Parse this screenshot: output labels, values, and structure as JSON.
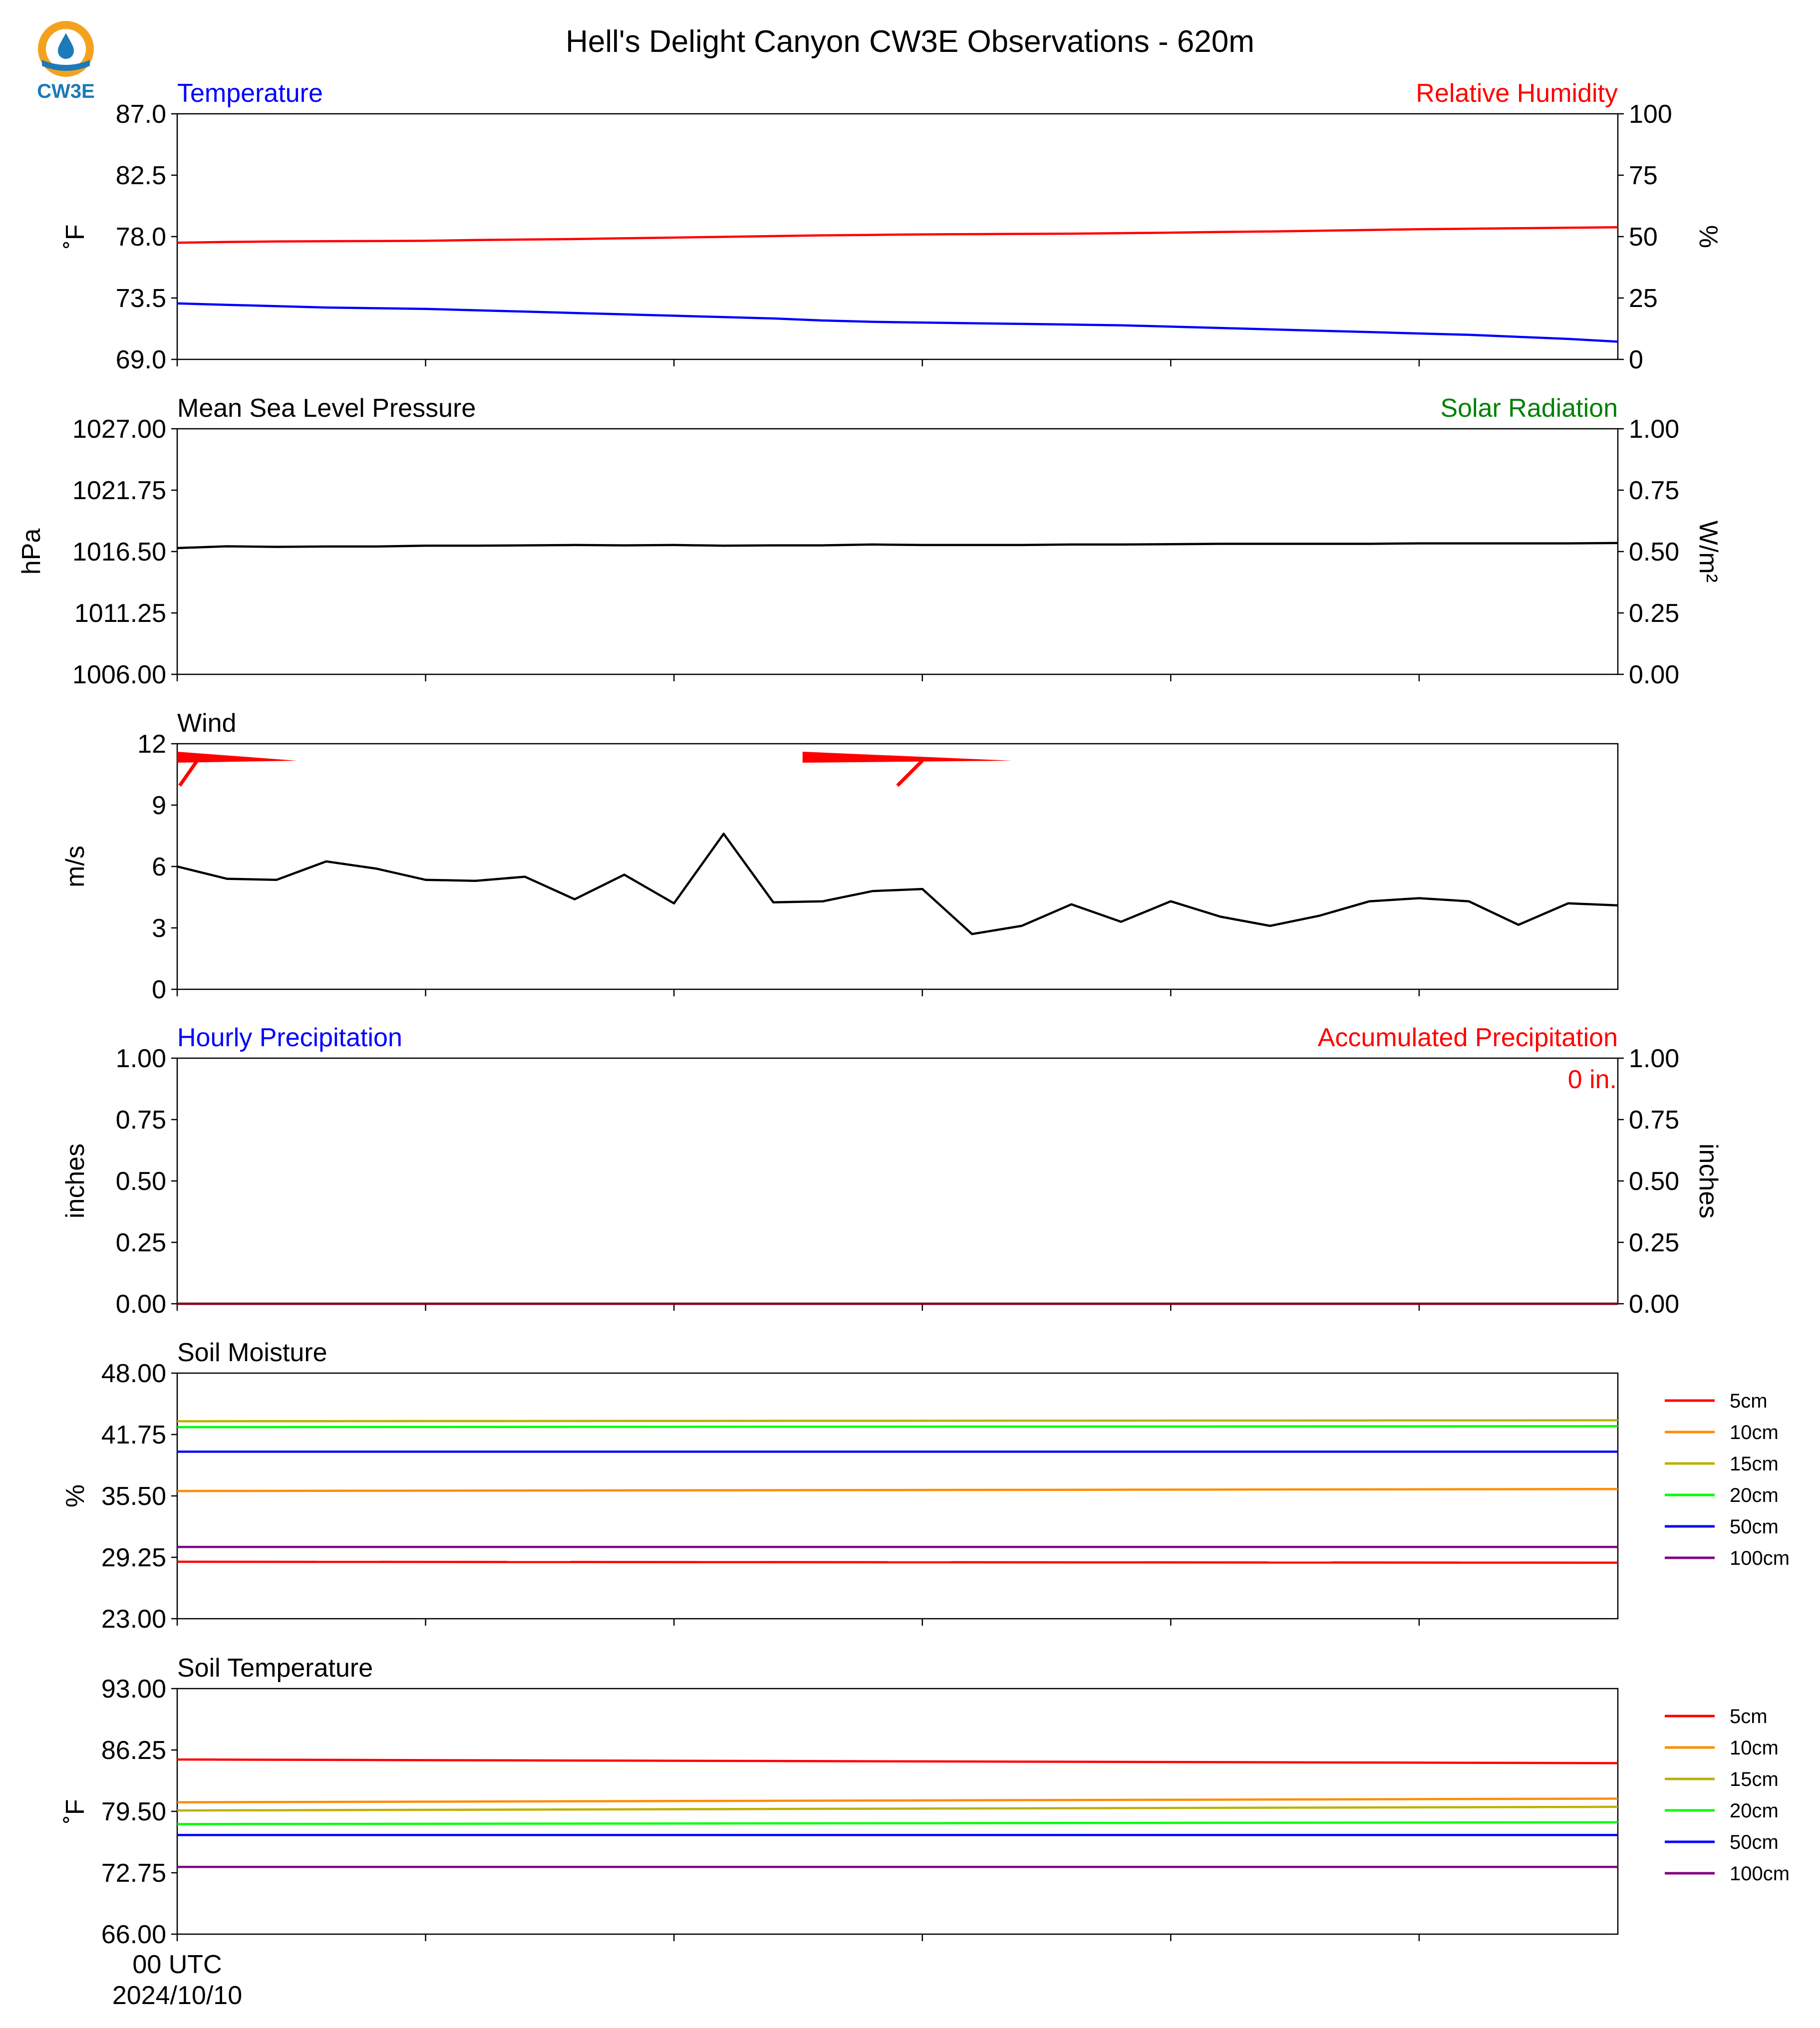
{
  "figure_title": "Hell's Delight Canyon CW3E Observations - 620m",
  "logo": {
    "text": "CW3E",
    "icon": "cw3e-logo-icon",
    "colors": {
      "ring": "#f4a21e",
      "drop": "#1d7ab8",
      "text": "#1d7ab8"
    }
  },
  "x_axis": {
    "first_tick_time": "00 UTC",
    "first_tick_date": "2024/10/10"
  },
  "chart_data": [
    {
      "id": "temp_rh",
      "type": "line",
      "left_title": "Temperature",
      "left_title_color": "#0000ff",
      "right_title": "Relative Humidity",
      "right_title_color": "#ff0000",
      "ylabel": "˚F",
      "ylabel_right": "%",
      "ylim": [
        69.0,
        87.0
      ],
      "ylim_right": [
        0,
        100
      ],
      "yticks": [
        "87.0",
        "82.5",
        "78.0",
        "73.5",
        "69.0"
      ],
      "yticks_right": [
        "100",
        "75",
        "50",
        "25",
        "0"
      ],
      "x": [
        0,
        1,
        2,
        3,
        4,
        5,
        6,
        7,
        8,
        9,
        10,
        11,
        12,
        13,
        14,
        15,
        16,
        17,
        18,
        19,
        20,
        21,
        22,
        23,
        24,
        25,
        26,
        27,
        28,
        29
      ],
      "series": [
        {
          "name": "Temperature",
          "axis": "left",
          "color": "#0000ff",
          "values": [
            73.1,
            73.0,
            72.9,
            72.8,
            72.75,
            72.7,
            72.6,
            72.5,
            72.4,
            72.3,
            72.2,
            72.1,
            72.0,
            71.85,
            71.75,
            71.7,
            71.65,
            71.6,
            71.55,
            71.5,
            71.4,
            71.3,
            71.2,
            71.1,
            71.0,
            70.9,
            70.8,
            70.65,
            70.5,
            70.3
          ]
        },
        {
          "name": "Relative Humidity",
          "axis": "right",
          "color": "#ff0000",
          "values": [
            47.5,
            47.8,
            48.0,
            48.1,
            48.2,
            48.3,
            48.6,
            48.8,
            49.0,
            49.3,
            49.6,
            49.9,
            50.2,
            50.5,
            50.7,
            50.9,
            51.0,
            51.1,
            51.2,
            51.4,
            51.6,
            51.9,
            52.1,
            52.4,
            52.7,
            53.0,
            53.2,
            53.4,
            53.6,
            53.8
          ]
        }
      ]
    },
    {
      "id": "pressure_solar",
      "type": "line",
      "left_title": "Mean Sea Level Pressure",
      "left_title_color": "#000000",
      "right_title": "Solar Radiation",
      "right_title_color": "#008000",
      "ylabel": "hPa",
      "ylabel_right": "W/m²",
      "ylim": [
        1006.0,
        1027.0
      ],
      "ylim_right": [
        0.0,
        1.0
      ],
      "yticks": [
        "1027.00",
        "1021.75",
        "1016.50",
        "1011.25",
        "1006.00"
      ],
      "yticks_right": [
        "1.00",
        "0.75",
        "0.50",
        "0.25",
        "0.00"
      ],
      "x": [
        0,
        1,
        2,
        3,
        4,
        5,
        6,
        7,
        8,
        9,
        10,
        11,
        12,
        13,
        14,
        15,
        16,
        17,
        18,
        19,
        20,
        21,
        22,
        23,
        24,
        25,
        26,
        27,
        28,
        29
      ],
      "series": [
        {
          "name": "Mean Sea Level Pressure",
          "axis": "left",
          "color": "#000000",
          "values": [
            1016.8,
            1016.95,
            1016.9,
            1016.93,
            1016.93,
            1017.0,
            1017.0,
            1017.03,
            1017.06,
            1017.03,
            1017.06,
            1017.0,
            1017.03,
            1017.03,
            1017.1,
            1017.06,
            1017.06,
            1017.06,
            1017.1,
            1017.1,
            1017.13,
            1017.16,
            1017.16,
            1017.16,
            1017.16,
            1017.2,
            1017.2,
            1017.2,
            1017.2,
            1017.23
          ]
        }
      ]
    },
    {
      "id": "wind",
      "type": "line",
      "left_title": "Wind",
      "left_title_color": "#000000",
      "ylabel": "m/s",
      "ylim": [
        0,
        12
      ],
      "yticks": [
        "12",
        "9",
        "6",
        "3",
        "0"
      ],
      "x": [
        0,
        1,
        2,
        3,
        4,
        5,
        6,
        7,
        8,
        9,
        10,
        11,
        12,
        13,
        14,
        15,
        16,
        17,
        18,
        19,
        20,
        21,
        22,
        23,
        24,
        25,
        26,
        27,
        28,
        29
      ],
      "series": [
        {
          "name": "Wind speed",
          "axis": "left",
          "color": "#000000",
          "values": [
            6.0,
            5.4,
            5.35,
            6.25,
            5.9,
            5.35,
            5.3,
            5.5,
            4.4,
            5.6,
            4.2,
            7.6,
            4.25,
            4.3,
            4.8,
            4.9,
            2.7,
            3.1,
            4.15,
            3.3,
            4.3,
            3.55,
            3.1,
            3.6,
            4.3,
            4.45,
            4.3,
            3.15,
            4.2,
            4.1
          ]
        }
      ],
      "barbs": [
        {
          "x": 0,
          "speed_ms": 6.0,
          "color": "#ff0000"
        },
        {
          "x": 15,
          "speed_ms": 4.9,
          "color": "#ff0000"
        }
      ]
    },
    {
      "id": "precip",
      "type": "line",
      "left_title": "Hourly Precipitation",
      "left_title_color": "#0000ff",
      "right_title": "Accumulated Precipitation",
      "right_title_color": "#ff0000",
      "ylabel": "inches",
      "ylabel_right": "inches",
      "ylim": [
        0.0,
        1.0
      ],
      "ylim_right": [
        0.0,
        1.0
      ],
      "yticks": [
        "1.00",
        "0.75",
        "0.50",
        "0.25",
        "0.00"
      ],
      "yticks_right": [
        "1.00",
        "0.75",
        "0.50",
        "0.25",
        "0.00"
      ],
      "annotation": "0 in.",
      "annotation_color": "#ff0000",
      "x": [
        0,
        29
      ],
      "series": [
        {
          "name": "Hourly Precipitation",
          "axis": "left",
          "color": "#0000ff",
          "values": [
            0,
            0
          ]
        },
        {
          "name": "Accumulated Precipitation",
          "axis": "right",
          "color": "#8b0000",
          "values": [
            0,
            0
          ]
        }
      ]
    },
    {
      "id": "soil_moisture",
      "type": "line",
      "left_title": "Soil Moisture",
      "left_title_color": "#000000",
      "ylabel": "%",
      "ylim": [
        23.0,
        48.0
      ],
      "yticks": [
        "48.00",
        "41.75",
        "35.50",
        "29.25",
        "23.00"
      ],
      "legend_position": "right",
      "x": [
        0,
        29
      ],
      "series": [
        {
          "name": "5cm",
          "axis": "left",
          "color": "#ff0000",
          "values": [
            28.8,
            28.7
          ]
        },
        {
          "name": "10cm",
          "axis": "left",
          "color": "#ff8c00",
          "values": [
            36.0,
            36.2
          ]
        },
        {
          "name": "15cm",
          "axis": "left",
          "color": "#bdb000",
          "values": [
            43.1,
            43.2
          ]
        },
        {
          "name": "20cm",
          "axis": "left",
          "color": "#00ff00",
          "values": [
            42.5,
            42.6
          ]
        },
        {
          "name": "50cm",
          "axis": "left",
          "color": "#0000ff",
          "values": [
            40.0,
            40.0
          ]
        },
        {
          "name": "100cm",
          "axis": "left",
          "color": "#800080",
          "values": [
            30.3,
            30.3
          ]
        }
      ]
    },
    {
      "id": "soil_temperature",
      "type": "line",
      "left_title": "Soil Temperature",
      "left_title_color": "#000000",
      "ylabel": "˚F",
      "ylim": [
        66.0,
        93.0
      ],
      "yticks": [
        "93.00",
        "86.25",
        "79.50",
        "72.75",
        "66.00"
      ],
      "legend_position": "right",
      "x": [
        0,
        29
      ],
      "series": [
        {
          "name": "5cm",
          "axis": "left",
          "color": "#ff0000",
          "values": [
            85.2,
            84.8
          ]
        },
        {
          "name": "10cm",
          "axis": "left",
          "color": "#ff8c00",
          "values": [
            80.5,
            80.9
          ]
        },
        {
          "name": "15cm",
          "axis": "left",
          "color": "#bdb000",
          "values": [
            79.6,
            80.0
          ]
        },
        {
          "name": "20cm",
          "axis": "left",
          "color": "#00ff00",
          "values": [
            78.1,
            78.3
          ]
        },
        {
          "name": "50cm",
          "axis": "left",
          "color": "#0000ff",
          "values": [
            76.9,
            76.9
          ]
        },
        {
          "name": "100cm",
          "axis": "left",
          "color": "#800080",
          "values": [
            73.4,
            73.4
          ]
        }
      ]
    }
  ]
}
